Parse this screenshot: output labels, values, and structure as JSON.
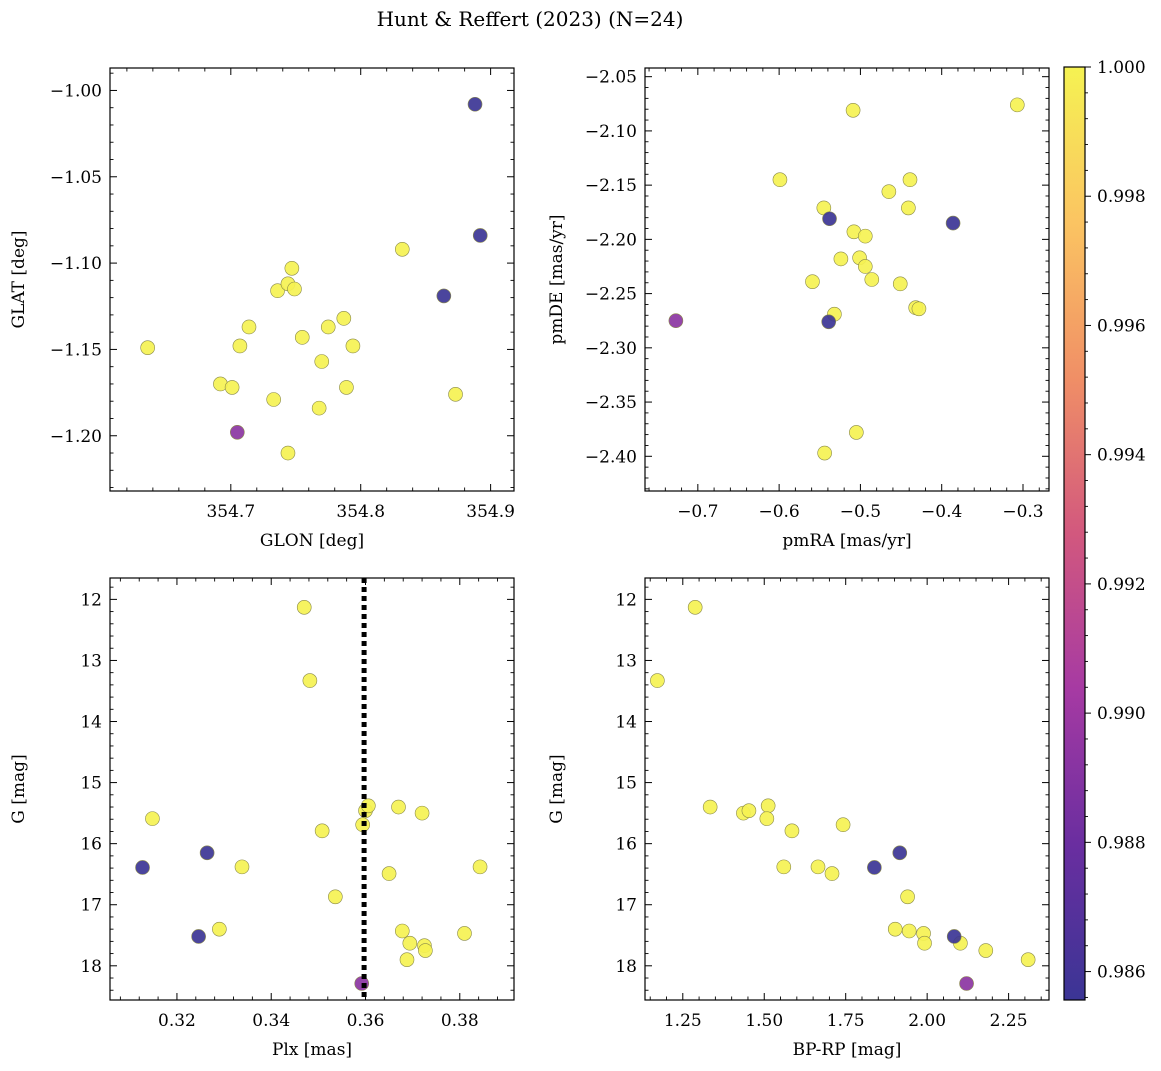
{
  "figure": {
    "title": "Hunt & Reffert (2023) (N=24)"
  },
  "colorbar": {
    "vmin": 0.98556,
    "vmax": 1.0,
    "ticks": [
      0.986,
      0.988,
      0.99,
      0.992,
      0.994,
      0.996,
      0.998,
      1.0
    ],
    "tick_labels": [
      "0.986",
      "0.988",
      "0.990",
      "0.992",
      "0.994",
      "0.996",
      "0.998",
      "1.000"
    ],
    "colormap": "plasma",
    "colors": [
      "#3b3595",
      "#6a2ea0",
      "#a63aa3",
      "#d2587e",
      "#f08f66",
      "#fbc462",
      "#f5f252"
    ]
  },
  "chart_data": [
    {
      "type": "scatter",
      "title": "",
      "xlabel": "GLON [deg]",
      "ylabel": "GLAT [deg]",
      "xlim": [
        354.607,
        354.918
      ],
      "ylim": [
        -1.232,
        -0.987
      ],
      "y_inverted": false,
      "xticks": [
        354.7,
        354.8,
        354.9
      ],
      "xtick_labels": [
        "354.7",
        "354.8",
        "354.9"
      ],
      "yticks": [
        -1.0,
        -1.05,
        -1.1,
        -1.15,
        -1.2
      ],
      "ytick_labels": [
        "−1.00",
        "−1.05",
        "−1.10",
        "−1.15",
        "−1.20"
      ],
      "vline": null,
      "points": [
        {
          "x": 354.636,
          "y": -1.149,
          "c": 1.0
        },
        {
          "x": 354.692,
          "y": -1.17,
          "c": 1.0
        },
        {
          "x": 354.701,
          "y": -1.172,
          "c": 1.0
        },
        {
          "x": 354.707,
          "y": -1.148,
          "c": 1.0
        },
        {
          "x": 354.714,
          "y": -1.137,
          "c": 1.0
        },
        {
          "x": 354.733,
          "y": -1.179,
          "c": 1.0
        },
        {
          "x": 354.736,
          "y": -1.116,
          "c": 1.0
        },
        {
          "x": 354.744,
          "y": -1.112,
          "c": 1.0
        },
        {
          "x": 354.747,
          "y": -1.103,
          "c": 1.0
        },
        {
          "x": 354.749,
          "y": -1.115,
          "c": 1.0
        },
        {
          "x": 354.755,
          "y": -1.143,
          "c": 1.0
        },
        {
          "x": 354.744,
          "y": -1.21,
          "c": 1.0
        },
        {
          "x": 354.768,
          "y": -1.184,
          "c": 1.0
        },
        {
          "x": 354.77,
          "y": -1.157,
          "c": 1.0
        },
        {
          "x": 354.775,
          "y": -1.137,
          "c": 1.0
        },
        {
          "x": 354.787,
          "y": -1.132,
          "c": 1.0
        },
        {
          "x": 354.789,
          "y": -1.172,
          "c": 1.0
        },
        {
          "x": 354.794,
          "y": -1.148,
          "c": 1.0
        },
        {
          "x": 354.832,
          "y": -1.092,
          "c": 1.0
        },
        {
          "x": 354.873,
          "y": -1.176,
          "c": 1.0
        },
        {
          "x": 354.705,
          "y": -1.198,
          "c": 0.9893
        },
        {
          "x": 354.864,
          "y": -1.119,
          "c": 0.9856
        },
        {
          "x": 354.888,
          "y": -1.008,
          "c": 0.9856
        },
        {
          "x": 354.892,
          "y": -1.084,
          "c": 0.9856
        }
      ]
    },
    {
      "type": "scatter",
      "title": "",
      "xlabel": "pmRA [mas/yr]",
      "ylabel": "pmDE [mas/yr]",
      "xlim": [
        -0.765,
        -0.268
      ],
      "ylim": [
        -2.432,
        -2.042
      ],
      "y_inverted": false,
      "xticks": [
        -0.7,
        -0.6,
        -0.5,
        -0.4,
        -0.3
      ],
      "xtick_labels": [
        "−0.7",
        "−0.6",
        "−0.5",
        "−0.4",
        "−0.3"
      ],
      "yticks": [
        -2.05,
        -2.1,
        -2.15,
        -2.2,
        -2.25,
        -2.3,
        -2.35,
        -2.4
      ],
      "ytick_labels": [
        "−2.05",
        "−2.10",
        "−2.15",
        "−2.20",
        "−2.25",
        "−2.30",
        "−2.35",
        "−2.40"
      ],
      "vline": null,
      "points": [
        {
          "x": -0.509,
          "y": -2.081,
          "c": 1.0
        },
        {
          "x": -0.307,
          "y": -2.076,
          "c": 1.0
        },
        {
          "x": -0.599,
          "y": -2.145,
          "c": 1.0
        },
        {
          "x": -0.465,
          "y": -2.156,
          "c": 1.0
        },
        {
          "x": -0.439,
          "y": -2.145,
          "c": 1.0
        },
        {
          "x": -0.545,
          "y": -2.171,
          "c": 1.0
        },
        {
          "x": -0.441,
          "y": -2.171,
          "c": 1.0
        },
        {
          "x": -0.508,
          "y": -2.193,
          "c": 1.0
        },
        {
          "x": -0.494,
          "y": -2.197,
          "c": 1.0
        },
        {
          "x": -0.524,
          "y": -2.218,
          "c": 1.0
        },
        {
          "x": -0.501,
          "y": -2.217,
          "c": 1.0
        },
        {
          "x": -0.494,
          "y": -2.225,
          "c": 1.0
        },
        {
          "x": -0.559,
          "y": -2.239,
          "c": 1.0
        },
        {
          "x": -0.486,
          "y": -2.237,
          "c": 1.0
        },
        {
          "x": -0.451,
          "y": -2.241,
          "c": 1.0
        },
        {
          "x": -0.432,
          "y": -2.263,
          "c": 1.0
        },
        {
          "x": -0.428,
          "y": -2.264,
          "c": 1.0
        },
        {
          "x": -0.532,
          "y": -2.269,
          "c": 1.0
        },
        {
          "x": -0.505,
          "y": -2.378,
          "c": 1.0
        },
        {
          "x": -0.544,
          "y": -2.397,
          "c": 1.0
        },
        {
          "x": -0.727,
          "y": -2.275,
          "c": 0.9893
        },
        {
          "x": -0.538,
          "y": -2.181,
          "c": 0.9856
        },
        {
          "x": -0.386,
          "y": -2.185,
          "c": 0.9856
        },
        {
          "x": -0.539,
          "y": -2.276,
          "c": 0.9856
        }
      ]
    },
    {
      "type": "scatter",
      "title": "",
      "xlabel": "Plx [mas]",
      "ylabel": "G [mag]",
      "xlim": [
        0.3058,
        0.3915
      ],
      "ylim": [
        11.65,
        18.56
      ],
      "y_inverted": true,
      "xticks": [
        0.32,
        0.34,
        0.36,
        0.38
      ],
      "xtick_labels": [
        "0.32",
        "0.34",
        "0.36",
        "0.38"
      ],
      "yticks": [
        12,
        13,
        14,
        15,
        16,
        17,
        18
      ],
      "ytick_labels": [
        "12",
        "13",
        "14",
        "15",
        "16",
        "17",
        "18"
      ],
      "vline": 0.3597,
      "points": [
        {
          "x": 0.347,
          "y": 12.13,
          "c": 1.0
        },
        {
          "x": 0.3482,
          "y": 13.33,
          "c": 1.0
        },
        {
          "x": 0.3148,
          "y": 15.59,
          "c": 1.0
        },
        {
          "x": 0.3338,
          "y": 16.38,
          "c": 1.0
        },
        {
          "x": 0.329,
          "y": 17.4,
          "c": 1.0
        },
        {
          "x": 0.3508,
          "y": 15.79,
          "c": 1.0
        },
        {
          "x": 0.3536,
          "y": 16.87,
          "c": 1.0
        },
        {
          "x": 0.3594,
          "y": 15.69,
          "c": 1.0
        },
        {
          "x": 0.36,
          "y": 15.46,
          "c": 1.0
        },
        {
          "x": 0.3606,
          "y": 15.38,
          "c": 1.0
        },
        {
          "x": 0.365,
          "y": 16.49,
          "c": 1.0
        },
        {
          "x": 0.367,
          "y": 15.4,
          "c": 1.0
        },
        {
          "x": 0.3678,
          "y": 17.43,
          "c": 1.0
        },
        {
          "x": 0.3688,
          "y": 17.9,
          "c": 1.0
        },
        {
          "x": 0.3694,
          "y": 17.63,
          "c": 1.0
        },
        {
          "x": 0.372,
          "y": 15.5,
          "c": 1.0
        },
        {
          "x": 0.3725,
          "y": 17.67,
          "c": 1.0
        },
        {
          "x": 0.3727,
          "y": 17.75,
          "c": 1.0
        },
        {
          "x": 0.381,
          "y": 17.47,
          "c": 1.0
        },
        {
          "x": 0.3843,
          "y": 16.38,
          "c": 1.0
        },
        {
          "x": 0.3592,
          "y": 18.29,
          "c": 0.9893
        },
        {
          "x": 0.3127,
          "y": 16.39,
          "c": 0.9856
        },
        {
          "x": 0.3246,
          "y": 17.52,
          "c": 0.9856
        },
        {
          "x": 0.3264,
          "y": 16.15,
          "c": 0.9856
        }
      ]
    },
    {
      "type": "scatter",
      "title": "",
      "xlabel": "BP-RP [mag]",
      "ylabel": "G [mag]",
      "xlim": [
        1.134,
        2.374
      ],
      "ylim": [
        11.65,
        18.56
      ],
      "y_inverted": true,
      "xticks": [
        1.25,
        1.5,
        1.75,
        2.0,
        2.25
      ],
      "xtick_labels": [
        "1.25",
        "1.50",
        "1.75",
        "2.00",
        "2.25"
      ],
      "yticks": [
        12,
        13,
        14,
        15,
        16,
        17,
        18
      ],
      "ytick_labels": [
        "12",
        "13",
        "14",
        "15",
        "16",
        "17",
        "18"
      ],
      "vline": null,
      "points": [
        {
          "x": 1.288,
          "y": 12.13,
          "c": 1.0
        },
        {
          "x": 1.172,
          "y": 13.33,
          "c": 1.0
        },
        {
          "x": 1.334,
          "y": 15.4,
          "c": 1.0
        },
        {
          "x": 1.436,
          "y": 15.5,
          "c": 1.0
        },
        {
          "x": 1.453,
          "y": 15.46,
          "c": 1.0
        },
        {
          "x": 1.512,
          "y": 15.38,
          "c": 1.0
        },
        {
          "x": 1.508,
          "y": 15.59,
          "c": 1.0
        },
        {
          "x": 1.585,
          "y": 15.79,
          "c": 1.0
        },
        {
          "x": 1.56,
          "y": 16.38,
          "c": 1.0
        },
        {
          "x": 1.665,
          "y": 16.38,
          "c": 1.0
        },
        {
          "x": 1.708,
          "y": 16.49,
          "c": 1.0
        },
        {
          "x": 1.742,
          "y": 15.69,
          "c": 1.0
        },
        {
          "x": 1.94,
          "y": 16.87,
          "c": 1.0
        },
        {
          "x": 1.902,
          "y": 17.4,
          "c": 1.0
        },
        {
          "x": 1.945,
          "y": 17.43,
          "c": 1.0
        },
        {
          "x": 1.989,
          "y": 17.47,
          "c": 1.0
        },
        {
          "x": 1.992,
          "y": 17.63,
          "c": 1.0
        },
        {
          "x": 2.102,
          "y": 17.63,
          "c": 1.0
        },
        {
          "x": 2.18,
          "y": 17.75,
          "c": 1.0
        },
        {
          "x": 2.31,
          "y": 17.9,
          "c": 1.0
        },
        {
          "x": 2.121,
          "y": 18.29,
          "c": 0.9893
        },
        {
          "x": 1.838,
          "y": 16.39,
          "c": 0.9856
        },
        {
          "x": 1.916,
          "y": 16.15,
          "c": 0.9856
        },
        {
          "x": 2.083,
          "y": 17.52,
          "c": 0.9856
        }
      ]
    }
  ]
}
